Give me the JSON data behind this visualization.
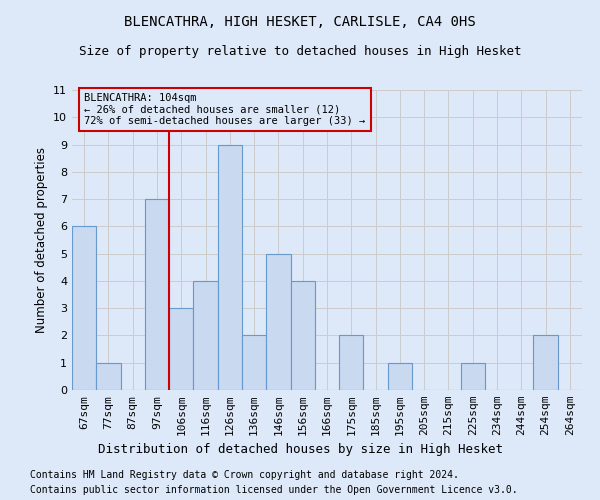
{
  "title": "BLENCATHRA, HIGH HESKET, CARLISLE, CA4 0HS",
  "subtitle": "Size of property relative to detached houses in High Hesket",
  "xlabel": "Distribution of detached houses by size in High Hesket",
  "ylabel": "Number of detached properties",
  "footer_line1": "Contains HM Land Registry data © Crown copyright and database right 2024.",
  "footer_line2": "Contains public sector information licensed under the Open Government Licence v3.0.",
  "categories": [
    "67sqm",
    "77sqm",
    "87sqm",
    "97sqm",
    "106sqm",
    "116sqm",
    "126sqm",
    "136sqm",
    "146sqm",
    "156sqm",
    "166sqm",
    "175sqm",
    "185sqm",
    "195sqm",
    "205sqm",
    "215sqm",
    "225sqm",
    "234sqm",
    "244sqm",
    "254sqm",
    "264sqm"
  ],
  "values": [
    6,
    1,
    0,
    7,
    3,
    4,
    9,
    2,
    5,
    4,
    0,
    2,
    0,
    1,
    0,
    0,
    1,
    0,
    0,
    2,
    0
  ],
  "bar_color": "#c9d9f0",
  "bar_edge_color": "#6699cc",
  "vline_x": 3.5,
  "vline_color": "#cc0000",
  "annotation_text": "BLENCATHRA: 104sqm\n← 26% of detached houses are smaller (12)\n72% of semi-detached houses are larger (33) →",
  "annotation_box_color": "#cc0000",
  "ylim": [
    0,
    11
  ],
  "yticks": [
    0,
    1,
    2,
    3,
    4,
    5,
    6,
    7,
    8,
    9,
    10,
    11
  ],
  "grid_color": "#cccccc",
  "background_color": "#dde8f8",
  "title_fontsize": 10,
  "subtitle_fontsize": 9,
  "xlabel_fontsize": 9,
  "ylabel_fontsize": 8.5,
  "tick_fontsize": 8,
  "footer_fontsize": 7
}
